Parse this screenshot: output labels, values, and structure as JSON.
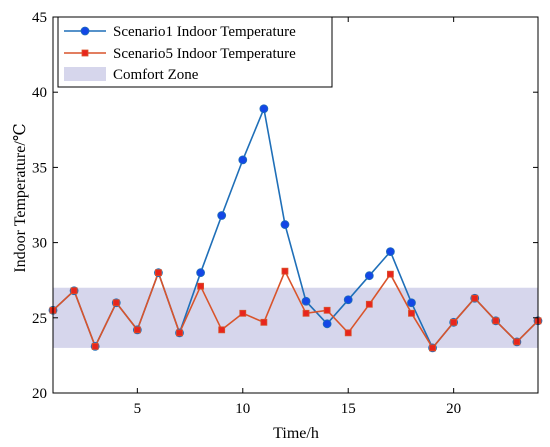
{
  "chart_data": {
    "type": "line",
    "title": "",
    "xlabel": "Time/h",
    "ylabel": "Indoor Temperature/℃",
    "xlim": [
      1,
      24
    ],
    "ylim": [
      20,
      45
    ],
    "xticks": [
      5,
      10,
      15,
      20
    ],
    "yticks": [
      20,
      25,
      30,
      35,
      40,
      45
    ],
    "grid": false,
    "legend_position": "top-left",
    "comfort_zone": {
      "name": "Comfort Zone",
      "y_range": [
        23,
        27
      ],
      "color": "#d6d6ec"
    },
    "series": [
      {
        "name": "Scenario1 Indoor Temperature",
        "color": "#1f6fb8",
        "marker_color": "#1447e6",
        "marker": "circle",
        "x": [
          1,
          2,
          3,
          4,
          5,
          6,
          7,
          8,
          9,
          10,
          11,
          12,
          13,
          14,
          15,
          16,
          17,
          18,
          19,
          20,
          21,
          22,
          23,
          24
        ],
        "values": [
          25.5,
          26.8,
          23.1,
          26.0,
          24.2,
          28.0,
          24.0,
          28.0,
          31.8,
          35.5,
          38.9,
          31.2,
          26.1,
          24.6,
          26.2,
          27.8,
          29.4,
          26.0,
          23.0,
          24.7,
          26.3,
          24.8,
          23.4,
          24.8
        ]
      },
      {
        "name": "Scenario5 Indoor Temperature",
        "color": "#d9542b",
        "marker_color": "#e8251d",
        "marker": "square",
        "x": [
          1,
          2,
          3,
          4,
          5,
          6,
          7,
          8,
          9,
          10,
          11,
          12,
          13,
          14,
          15,
          16,
          17,
          18,
          19,
          20,
          21,
          22,
          23,
          24
        ],
        "values": [
          25.5,
          26.8,
          23.1,
          26.0,
          24.2,
          28.0,
          24.0,
          27.1,
          24.2,
          25.3,
          24.7,
          28.1,
          25.3,
          25.5,
          24.0,
          25.9,
          27.9,
          25.3,
          23.0,
          24.7,
          26.3,
          24.8,
          23.4,
          24.8
        ]
      }
    ]
  }
}
